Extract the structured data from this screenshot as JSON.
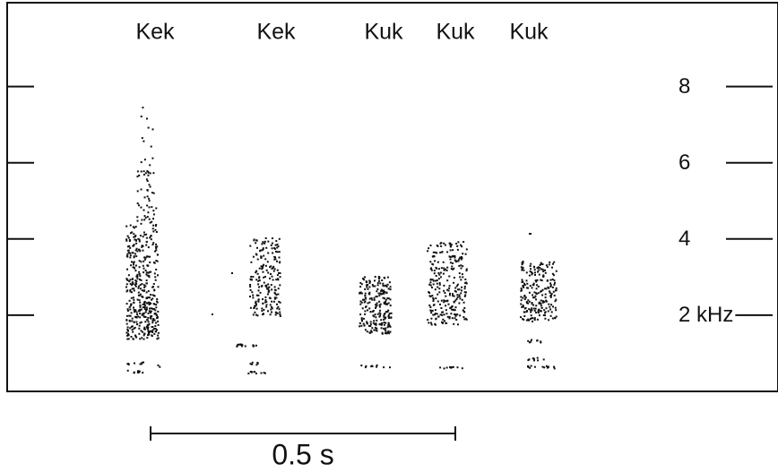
{
  "chart_data": {
    "type": "spectrogram",
    "calls": [
      "Kek",
      "Kek",
      "Kuk",
      "Kuk",
      "Kuk"
    ],
    "ylim": [
      0,
      10.2
    ],
    "yticks": [
      {
        "value": 2,
        "label": "2 kHz"
      },
      4,
      6,
      8
    ],
    "scale_bar": "0.5 s",
    "color": "#111111"
  }
}
